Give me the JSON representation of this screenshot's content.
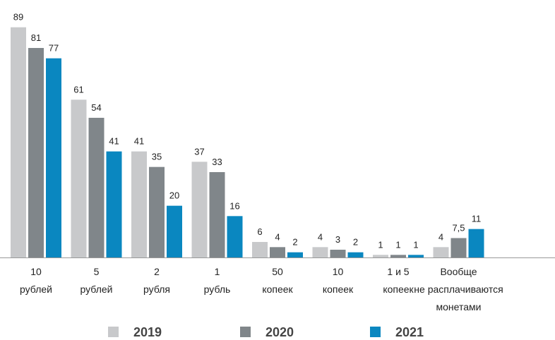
{
  "chart_data": {
    "type": "bar",
    "categories": [
      [
        "10",
        "рублей"
      ],
      [
        "5",
        "рублей"
      ],
      [
        "2",
        "рубля"
      ],
      [
        "1",
        "рубль"
      ],
      [
        "50",
        "копеек"
      ],
      [
        "10",
        "копеек"
      ],
      [
        "1 и 5",
        "копеек"
      ],
      [
        "Вообще",
        "не расплачиваются",
        "монетами"
      ]
    ],
    "series": [
      {
        "name": "2019",
        "color": "#c8c9cb",
        "values": [
          89,
          61,
          41,
          37,
          6,
          4,
          1,
          4
        ]
      },
      {
        "name": "2020",
        "color": "#80868a",
        "values": [
          81,
          54,
          35,
          33,
          4,
          3,
          1,
          7.5
        ],
        "value_labels": [
          "81",
          "54",
          "35",
          "33",
          "4",
          "3",
          "1",
          "7,5"
        ]
      },
      {
        "name": "2021",
        "color": "#0a87c0",
        "values": [
          77,
          41,
          20,
          16,
          2,
          2,
          1,
          11
        ]
      }
    ],
    "ylim": [
      0,
      90
    ]
  }
}
